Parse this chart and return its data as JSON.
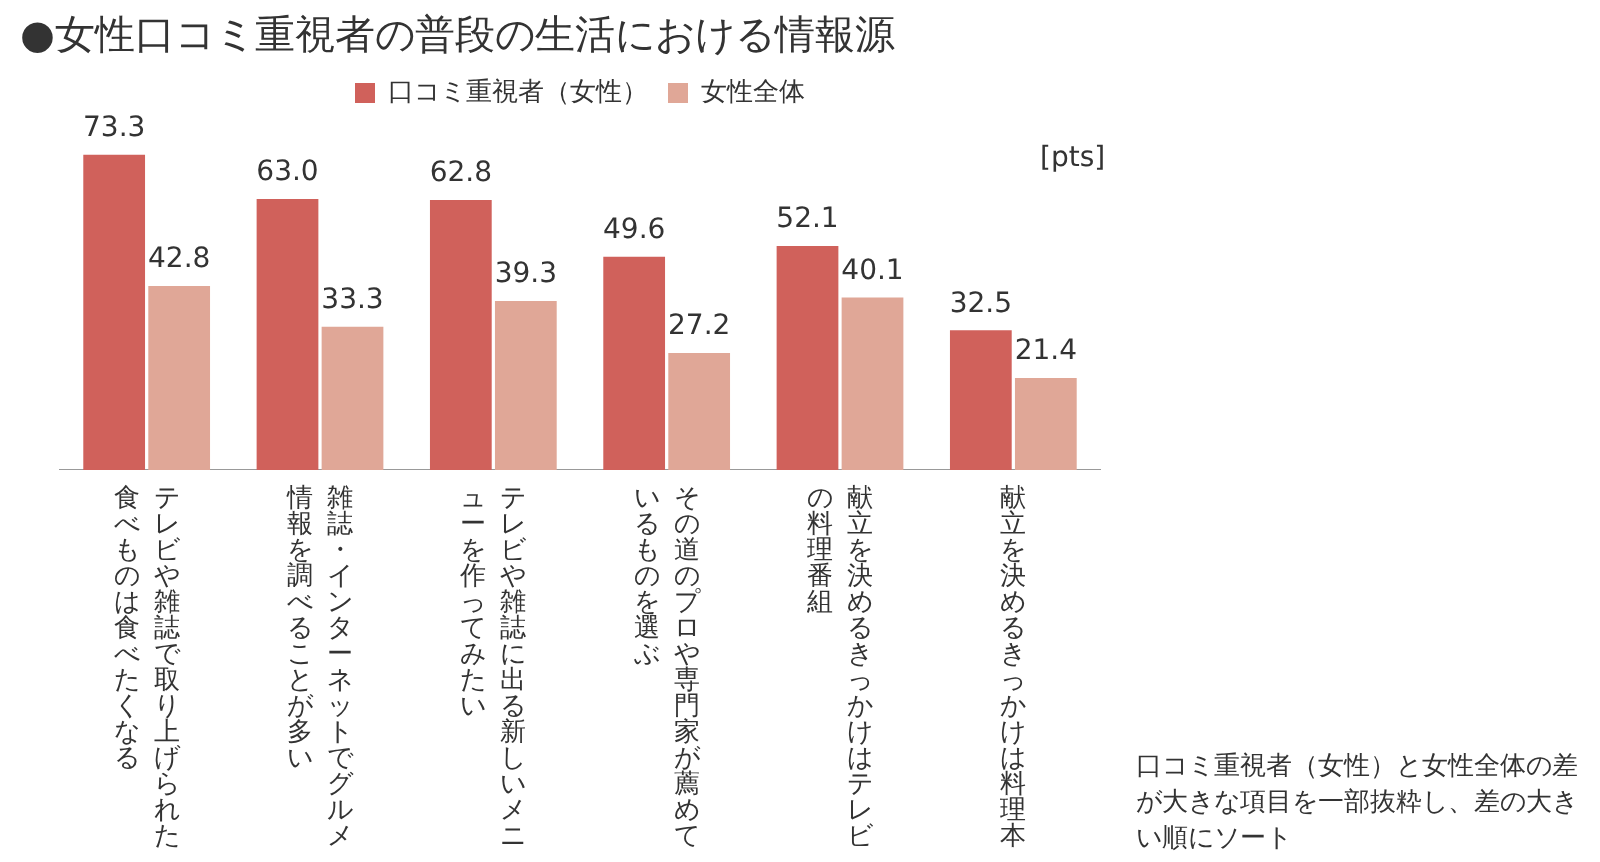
{
  "chart_data": {
    "type": "bar",
    "title": "●女性口コミ重視者の普段の生活における情報源",
    "ylabel": "[pts]",
    "categories": [
      "テレビや雑誌で取り上げられた食べものは食べたくなる",
      "雑誌・インターネットでグルメ情報を調べることが多い",
      "テレビや雑誌に出る新しいメニューを作ってみたい",
      "その道のプロや専門家が薦めているものを選ぶ",
      "献立を決めるきっかけはテレビの料理番組",
      "献立を決めるきっかけは料理本"
    ],
    "series": [
      {
        "name": "口コミ重視者（女性）",
        "color": "#d0615b",
        "values": [
          73.3,
          63.0,
          62.8,
          49.6,
          52.1,
          32.5
        ],
        "value_labels": [
          "73.3",
          "63.0",
          "62.8",
          "49.6",
          "52.1",
          "32.5"
        ]
      },
      {
        "name": "女性全体",
        "color": "#e0a797",
        "values": [
          42.8,
          33.3,
          39.3,
          27.2,
          40.1,
          21.4
        ],
        "value_labels": [
          "42.8",
          "33.3",
          "39.3",
          "27.2",
          "40.1",
          "21.4"
        ]
      }
    ],
    "data_labels": true,
    "legend": "top",
    "grid": false,
    "annotations": [
      "口コミ重視者（女性）と女性全体の差が大きな項目を一部抜粋し、差の大きい順にソート"
    ]
  }
}
